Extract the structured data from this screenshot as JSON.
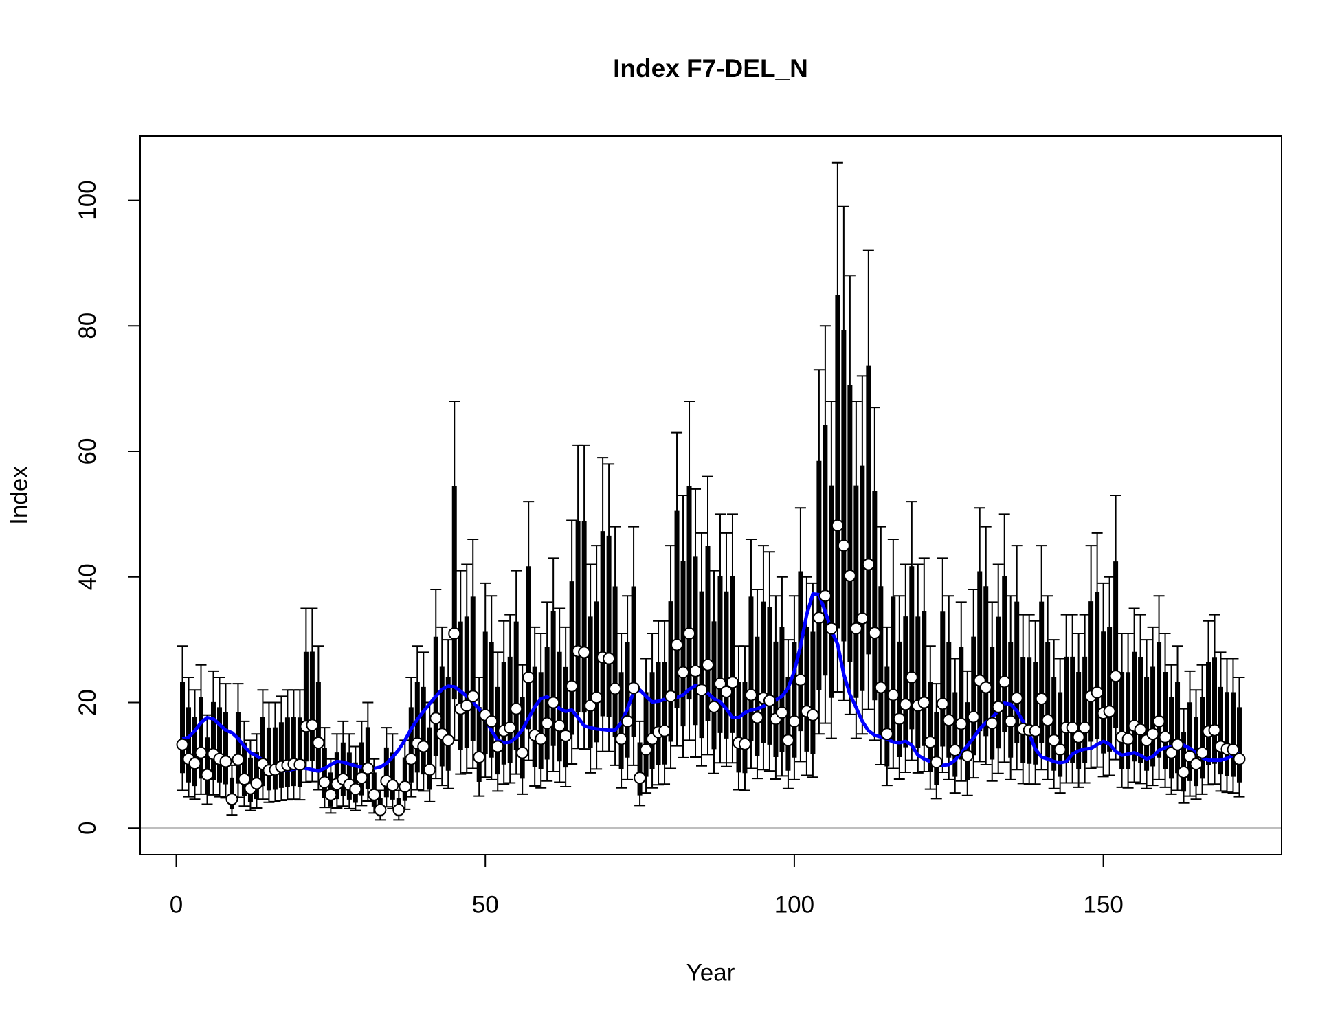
{
  "chart_data": {
    "type": "errorbar",
    "title": "Index F7-DEL_N",
    "xlabel": "Year",
    "ylabel": "Index",
    "xlim": [
      -5.84,
      178.84
    ],
    "ylim": [
      -4.24,
      110.24
    ],
    "xticks": [
      0,
      50,
      100,
      150
    ],
    "yticks": [
      0,
      20,
      40,
      60,
      80,
      100
    ],
    "reference_line": 0,
    "reference_color": "#bebebe",
    "point_color": "#ffffff",
    "bar_color": "#000000",
    "line_color": "#0000ff",
    "x": [
      1,
      2,
      3,
      4,
      5,
      6,
      7,
      8,
      9,
      10,
      11,
      12,
      13,
      14,
      15,
      16,
      17,
      18,
      19,
      20,
      21,
      22,
      23,
      24,
      25,
      26,
      27,
      28,
      29,
      30,
      31,
      32,
      33,
      34,
      35,
      36,
      37,
      38,
      39,
      40,
      41,
      42,
      43,
      44,
      45,
      46,
      47,
      48,
      49,
      50,
      51,
      52,
      53,
      54,
      55,
      56,
      57,
      58,
      59,
      60,
      61,
      62,
      63,
      64,
      65,
      66,
      67,
      68,
      69,
      70,
      71,
      72,
      73,
      74,
      75,
      76,
      77,
      78,
      79,
      80,
      81,
      82,
      83,
      84,
      85,
      86,
      87,
      88,
      89,
      90,
      91,
      92,
      93,
      94,
      95,
      96,
      97,
      98,
      99,
      100,
      101,
      102,
      103,
      104,
      105,
      106,
      107,
      108,
      109,
      110,
      111,
      112,
      113,
      114,
      115,
      116,
      117,
      118,
      119,
      120,
      121,
      122,
      123,
      124,
      125,
      126,
      127,
      128,
      129,
      130,
      131,
      132,
      133,
      134,
      135,
      136,
      137,
      138,
      139,
      140,
      141,
      142,
      143,
      144,
      145,
      146,
      147,
      148,
      149,
      150,
      151,
      152,
      153,
      154,
      155,
      156,
      157,
      158,
      159,
      160,
      161,
      162,
      163,
      164,
      165,
      166,
      167,
      168,
      169,
      170,
      171,
      172
    ],
    "values": [
      13.3,
      11,
      10.3,
      12,
      8.5,
      11.8,
      11,
      10.6,
      4.6,
      10.9,
      7.8,
      6.3,
      7.1,
      10.2,
      9.2,
      9.3,
      9.8,
      10,
      10.2,
      10.1,
      16.2,
      16.4,
      13.6,
      7.3,
      5.3,
      7,
      7.8,
      6.9,
      6.2,
      8,
      9.5,
      5.3,
      2.9,
      7.5,
      6.8,
      2.9,
      6.6,
      11,
      13.5,
      13,
      9.3,
      17.5,
      15,
      14,
      31,
      19,
      19.5,
      21,
      11.3,
      18,
      17,
      13,
      15.5,
      16,
      19,
      12,
      24,
      14.8,
      14.2,
      16.7,
      20,
      16.3,
      14.7,
      22.6,
      28.2,
      28,
      19.5,
      20.8,
      27.2,
      27,
      22.2,
      14.2,
      17,
      22.3,
      8,
      12.5,
      14.2,
      15.3,
      15.5,
      21,
      29.2,
      24.8,
      31,
      25,
      22,
      26,
      19.3,
      23,
      21.7,
      23.2,
      13.6,
      13.4,
      21.2,
      17.6,
      20.7,
      20.3,
      17.4,
      18.4,
      14,
      17,
      23.6,
      18.6,
      18,
      33.5,
      37,
      31.8,
      48.2,
      45,
      40.2,
      31.8,
      33.4,
      42,
      31.1,
      22.4,
      15,
      21.2,
      17.4,
      19.7,
      24,
      19.5,
      20,
      13.7,
      10.5,
      19.8,
      17.2,
      12.4,
      16.6,
      11.5,
      17.7,
      23.5,
      22.4,
      16.7,
      19.3,
      23.3,
      17,
      20.7,
      15.8,
      15.6,
      15.5,
      20.6,
      17.2,
      14,
      12.5,
      16,
      16,
      14.5,
      16,
      21,
      21.6,
      18.3,
      18.6,
      24.2,
      14.5,
      14.2,
      16.3,
      15.7,
      14,
      15,
      17,
      14.5,
      12,
      13.3,
      8.9,
      11.4,
      10.2,
      12,
      15.4,
      15.6,
      13,
      12.6,
      12.5,
      11
    ],
    "upper": [
      29,
      24,
      22,
      26,
      18,
      25,
      24,
      23,
      10,
      23,
      17,
      14,
      15,
      22,
      20,
      20,
      21,
      22,
      22,
      22,
      35,
      35,
      29,
      16,
      11,
      15,
      17,
      15,
      13,
      17,
      20,
      11,
      6,
      16,
      15,
      6,
      14,
      24,
      29,
      28,
      20,
      38,
      32,
      30,
      68,
      41,
      42,
      46,
      24,
      39,
      37,
      28,
      33,
      34,
      41,
      26,
      52,
      32,
      31,
      36,
      43,
      35,
      32,
      49,
      61,
      61,
      42,
      45,
      59,
      58,
      48,
      31,
      37,
      48,
      17,
      27,
      31,
      33,
      33,
      45,
      63,
      53,
      68,
      54,
      47,
      56,
      41,
      50,
      47,
      50,
      29,
      29,
      46,
      38,
      45,
      44,
      37,
      40,
      30,
      37,
      51,
      40,
      39,
      73,
      80,
      68,
      106,
      99,
      88,
      68,
      72,
      92,
      67,
      48,
      32,
      46,
      37,
      42,
      52,
      42,
      43,
      29,
      23,
      43,
      37,
      27,
      36,
      25,
      38,
      51,
      48,
      36,
      42,
      50,
      37,
      45,
      34,
      34,
      33,
      45,
      37,
      30,
      27,
      34,
      34,
      31,
      34,
      45,
      47,
      39,
      40,
      53,
      31,
      31,
      35,
      34,
      30,
      32,
      37,
      31,
      26,
      29,
      19,
      25,
      22,
      26,
      33,
      34,
      28,
      27,
      27,
      24
    ],
    "lower": [
      6,
      5,
      4.6,
      5.4,
      3.8,
      5.3,
      5,
      4.8,
      2.1,
      4.9,
      3.5,
      2.8,
      3.2,
      4.6,
      4.1,
      4.2,
      4.4,
      4.5,
      4.6,
      4.5,
      7.3,
      7.4,
      6.1,
      3.3,
      2.4,
      3.2,
      3.5,
      3.1,
      2.8,
      3.6,
      4.3,
      2.4,
      1.3,
      3.4,
      3.1,
      1.3,
      3,
      5,
      6.1,
      5.9,
      4.2,
      7.9,
      6.8,
      6.3,
      14,
      8.6,
      8.8,
      9.5,
      5.1,
      8.1,
      7.7,
      5.9,
      7,
      7.2,
      8.6,
      5.4,
      10.8,
      6.7,
      6.4,
      7.5,
      9,
      7.3,
      6.6,
      10.2,
      12.7,
      12.6,
      8.8,
      9.4,
      12.2,
      12.2,
      10,
      6.4,
      7.7,
      10,
      3.6,
      5.6,
      6.4,
      6.9,
      7,
      9.5,
      13.1,
      11.2,
      14,
      11.3,
      9.9,
      11.7,
      8.7,
      10.4,
      9.8,
      10.4,
      6.1,
      6,
      9.5,
      7.9,
      9.3,
      9.1,
      7.8,
      8.3,
      6.3,
      7.7,
      10.6,
      8.4,
      8.1,
      15,
      16.7,
      14.3,
      21.7,
      20.3,
      18.1,
      14.3,
      15,
      18.9,
      14,
      10.1,
      6.8,
      9.5,
      7.8,
      8.9,
      10.8,
      8.8,
      9,
      6.2,
      4.7,
      8.9,
      7.7,
      5.6,
      7.5,
      5.2,
      8,
      10.6,
      10.1,
      7.5,
      8.7,
      10.5,
      7.7,
      9.3,
      7.1,
      7,
      7,
      9.3,
      7.7,
      6.3,
      5.6,
      7.2,
      7.2,
      6.5,
      7.2,
      9.5,
      9.7,
      8.2,
      8.4,
      10.9,
      6.5,
      6.4,
      7.3,
      7.1,
      6.3,
      6.8,
      7.7,
      6.5,
      5.4,
      6,
      4,
      5.1,
      4.6,
      5.4,
      6.9,
      7,
      5.9,
      5.7,
      5.6,
      5
    ],
    "smooth": [
      14.2,
      14.5,
      15.5,
      16.8,
      17.6,
      17.4,
      16.5,
      15.6,
      15.2,
      14.3,
      13,
      12,
      11.5,
      10.8,
      9.8,
      9.3,
      9.1,
      9.2,
      9.4,
      9.6,
      9.5,
      9.3,
      9.1,
      9.5,
      10.1,
      10.6,
      10.5,
      10.2,
      9.9,
      9.7,
      9.5,
      9.5,
      9.7,
      10.3,
      11.3,
      12.5,
      14,
      15.8,
      17.3,
      18.6,
      19.8,
      21,
      22.1,
      22.6,
      22.5,
      21.8,
      21,
      20,
      19,
      17.5,
      15.5,
      14,
      13.6,
      13.7,
      14.4,
      15.7,
      17.5,
      19.3,
      20.6,
      20.9,
      20.3,
      19,
      18.6,
      18.8,
      17.6,
      16.3,
      16,
      15.8,
      15.7,
      15.6,
      15.6,
      16.8,
      19,
      21.7,
      22,
      21,
      20.1,
      20.2,
      20.5,
      20.6,
      20.8,
      21.2,
      22.1,
      22.7,
      22.3,
      21.5,
      20.6,
      20.1,
      19,
      17.6,
      17.6,
      18.4,
      18.8,
      19,
      19.4,
      20,
      20.4,
      21,
      22.3,
      25,
      29,
      34,
      37.3,
      37.2,
      34.5,
      31.5,
      29.3,
      24.5,
      21.3,
      19.2,
      17,
      15.5,
      14.8,
      14.5,
      14.2,
      13.7,
      13.6,
      13.8,
      13.2,
      11.6,
      11,
      10.6,
      10.2,
      10,
      10.1,
      10.8,
      12,
      13.1,
      14.4,
      15.8,
      16.8,
      17.6,
      18.7,
      19.9,
      19.7,
      18.7,
      17,
      15,
      12.6,
      11.3,
      11,
      10.6,
      10.4,
      10.6,
      11.8,
      12.3,
      12.6,
      12.7,
      13.3,
      13.8,
      13.4,
      12.2,
      11.6,
      11.8,
      12,
      11.6,
      11,
      11.4,
      12.4,
      12.8,
      12.9,
      13.1,
      13.2,
      12.7,
      12,
      11.2,
      10.8,
      10.8,
      10.8,
      11.1,
      11.6,
      12
    ]
  }
}
